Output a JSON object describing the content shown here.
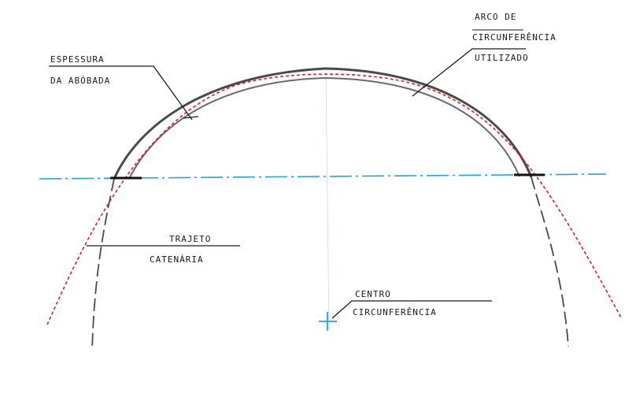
{
  "labels": {
    "espessura_line1": "ESPESSURA",
    "espessura_line2": "DA ABÓBADA",
    "arco_line1": "ARCO DE",
    "arco_line2": "CIRCUNFERÊNCIA",
    "arco_line3": "UTILIZADO",
    "trajeto_line1": "TRAJETO",
    "trajeto_line2": "CATENÁRIA",
    "centro_line1": "CENTRO",
    "centro_line2": "CIRCUNFERÊNCIA"
  },
  "colors": {
    "arch": "#4a4a4a",
    "catenary": "#e0201e",
    "axis": "#1aa8d8",
    "ink": "#1a1a1a"
  }
}
